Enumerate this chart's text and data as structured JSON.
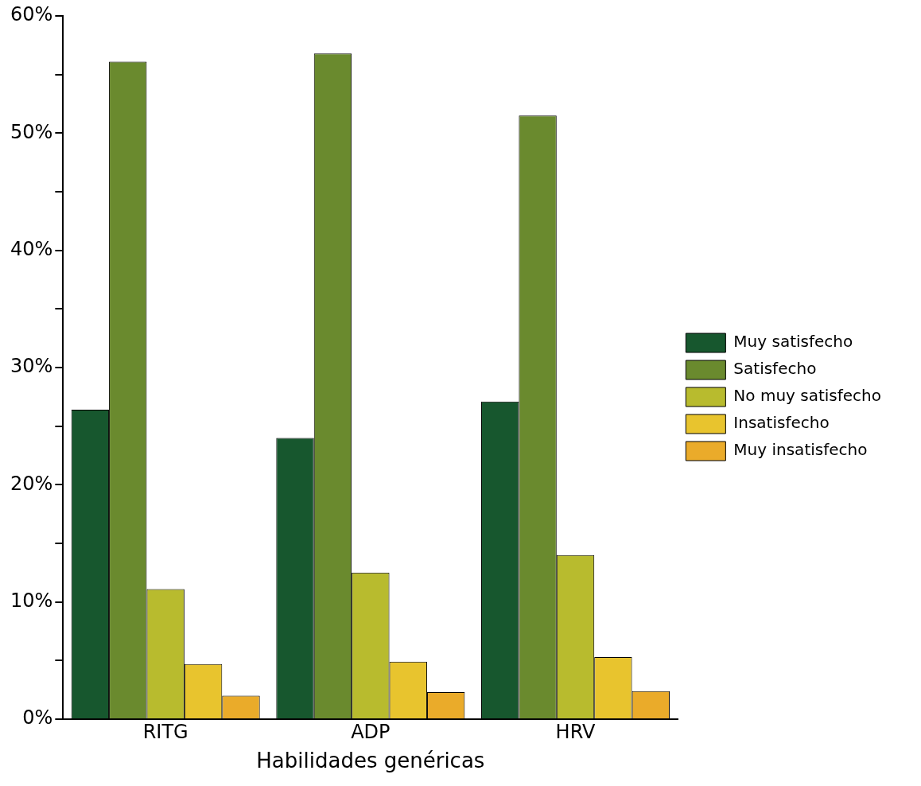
{
  "chart_data": {
    "type": "bar",
    "xlabel": "Habilidades genéricas",
    "categories": [
      "RITG",
      "ADP",
      "HRV"
    ],
    "series": [
      {
        "name": "Muy satisfecho",
        "color": "#17572e",
        "values": [
          26.4,
          24.0,
          27.1
        ]
      },
      {
        "name": "Satisfecho",
        "color": "#6a8a2e",
        "values": [
          56.1,
          56.8,
          51.5
        ]
      },
      {
        "name": "No muy satisfecho",
        "color": "#b8bb2e",
        "values": [
          11.1,
          12.5,
          14.0
        ]
      },
      {
        "name": "Insatisfecho",
        "color": "#e8c42e",
        "values": [
          4.7,
          4.9,
          5.3
        ]
      },
      {
        "name": "Muy insatisfecho",
        "color": "#eaab2a",
        "values": [
          2.0,
          2.3,
          2.4
        ]
      }
    ],
    "ylim": [
      0,
      60
    ],
    "yticks": [
      {
        "value": 0,
        "label": "0%"
      },
      {
        "value": 5,
        "label": null
      },
      {
        "value": 10,
        "label": "10%"
      },
      {
        "value": 15,
        "label": null
      },
      {
        "value": 20,
        "label": "20%"
      },
      {
        "value": 25,
        "label": null
      },
      {
        "value": 30,
        "label": "30%"
      },
      {
        "value": 35,
        "label": null
      },
      {
        "value": 40,
        "label": "40%"
      },
      {
        "value": 45,
        "label": null
      },
      {
        "value": 50,
        "label": "50%"
      },
      {
        "value": 55,
        "label": null
      },
      {
        "value": 60,
        "label": "60%"
      }
    ],
    "grid": false,
    "legend": "right"
  }
}
